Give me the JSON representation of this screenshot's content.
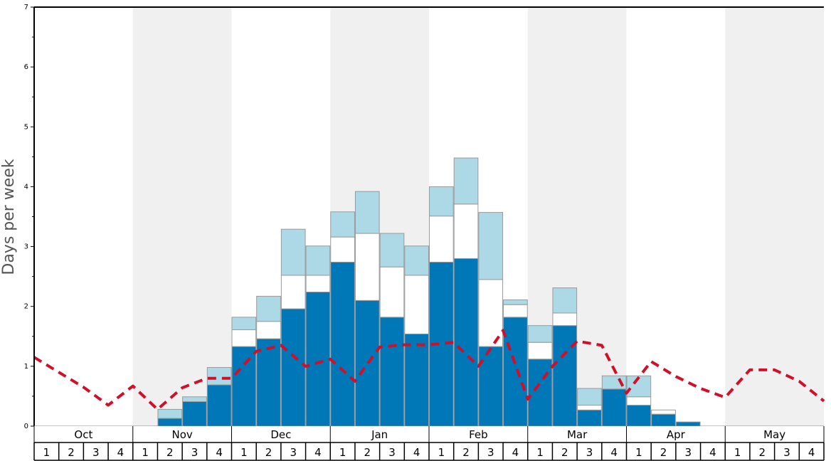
{
  "chart_data": {
    "type": "bar",
    "ylabel": "Days per week",
    "ylim": [
      0,
      7
    ],
    "yticks": [
      "0",
      "1",
      "2",
      "3",
      "4",
      "5",
      "6",
      "7"
    ],
    "months": [
      "Oct",
      "Nov",
      "Dec",
      "Jan",
      "Feb",
      "Mar",
      "Apr",
      "May"
    ],
    "weeks": [
      "1",
      "2",
      "3",
      "4"
    ],
    "stacked": true,
    "colors": {
      "base": "#0077b6",
      "middle": "#ffffff",
      "top": "#add8e6",
      "line": "#d0102a",
      "shade": "#f0f0f0"
    },
    "series": [
      {
        "values": [
          0,
          0,
          0,
          0,
          0,
          0.13,
          0.41,
          0.69,
          1.33,
          1.46,
          1.96,
          2.24,
          2.74,
          2.1,
          1.82,
          1.54,
          2.74,
          2.8,
          1.33,
          1.82,
          1.12,
          1.68,
          0.27,
          0.62,
          0.35,
          0.2,
          0.07,
          0,
          0,
          0,
          0,
          0
        ]
      },
      {
        "values": [
          0,
          0,
          0,
          0,
          0,
          0,
          0,
          0,
          0.28,
          0.29,
          0.56,
          0.28,
          0.42,
          1.12,
          0.84,
          0.98,
          0.77,
          0.91,
          1.12,
          0.21,
          0.28,
          0.21,
          0.08,
          0,
          0.14,
          0.07,
          0,
          0,
          0,
          0,
          0,
          0
        ]
      },
      {
        "values": [
          0,
          0,
          0,
          0,
          0,
          0.15,
          0.08,
          0.29,
          0.21,
          0.42,
          0.77,
          0.49,
          0.42,
          0.7,
          0.56,
          0.49,
          0.49,
          0.77,
          1.12,
          0.08,
          0.28,
          0.42,
          0.28,
          0.22,
          0.35,
          0,
          0,
          0,
          0,
          0,
          0,
          0
        ]
      },
      {
        "type": "line",
        "style": "dashed",
        "values": [
          1.15,
          0.9,
          0.65,
          0.35,
          0.67,
          0.28,
          0.64,
          0.8,
          0.8,
          1.25,
          1.35,
          1.0,
          1.12,
          0.75,
          1.32,
          1.36,
          1.36,
          1.4,
          1.0,
          1.6,
          0.45,
          1.0,
          1.42,
          1.35,
          0.55,
          1.08,
          0.83,
          0.63,
          0.48,
          0.94,
          0.94,
          0.75,
          0.42
        ]
      }
    ]
  }
}
